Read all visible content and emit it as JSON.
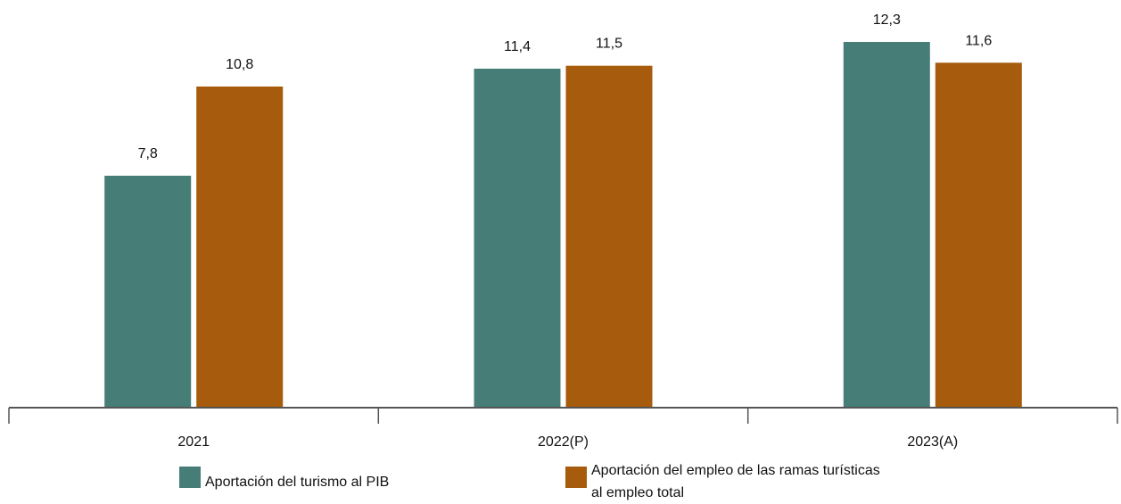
{
  "chart_data": {
    "type": "bar",
    "categories": [
      "2021",
      "2022(P)",
      "2023(A)"
    ],
    "series": [
      {
        "name": "Aportación del turismo al PIB",
        "values": [
          7.8,
          11.4,
          12.3
        ],
        "color": "#467D77"
      },
      {
        "name": "Aportación del empleo de las ramas turísticas al empleo total",
        "legend_lines": [
          "Aportación del empleo de las ramas turísticas",
          "al empleo total"
        ],
        "values": [
          10.8,
          11.5,
          11.6
        ],
        "color": "#A65C0C"
      }
    ],
    "value_labels": [
      [
        "7,8",
        "11,4",
        "12,3"
      ],
      [
        "10,8",
        "11,5",
        "11,6"
      ]
    ],
    "title": "",
    "xlabel": "",
    "ylabel": "",
    "ylim": [
      0,
      13
    ],
    "grid": false,
    "legend_position": "bottom"
  }
}
